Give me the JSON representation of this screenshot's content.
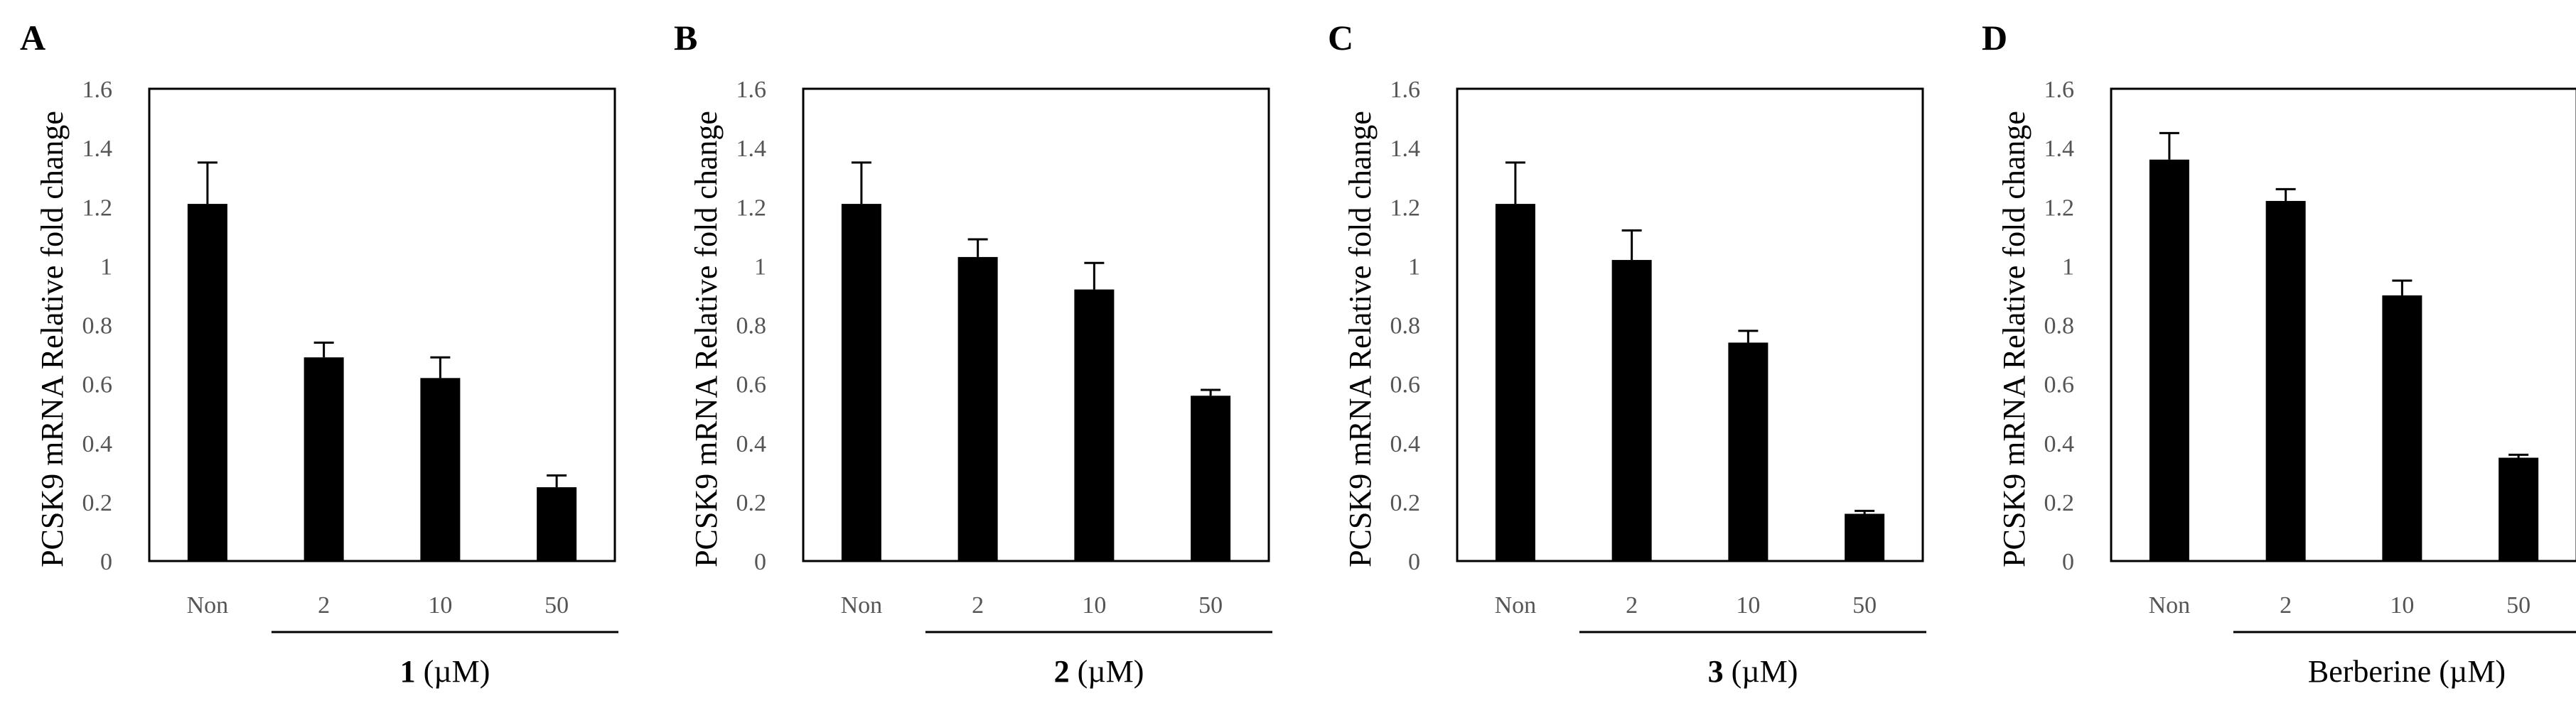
{
  "chart_data": [
    {
      "panel": "A",
      "type": "bar",
      "ylabel": "PCSK9 mRNA Relative fold change",
      "ylim": [
        0,
        1.6
      ],
      "yticks": [
        "0",
        "0.2",
        "0.4",
        "0.6",
        "0.8",
        "1",
        "1.2",
        "1.4",
        "1.6"
      ],
      "categories": [
        "Non",
        "2",
        "10",
        "50"
      ],
      "values": [
        1.21,
        0.69,
        0.62,
        0.25
      ],
      "errors": [
        0.14,
        0.05,
        0.07,
        0.04
      ],
      "xlabel_bold": "1",
      "xlabel_rest": " (µM)",
      "color": "#000000"
    },
    {
      "panel": "B",
      "type": "bar",
      "ylabel": "PCSK9 mRNA Relative fold change",
      "ylim": [
        0,
        1.6
      ],
      "yticks": [
        "0",
        "0.2",
        "0.4",
        "0.6",
        "0.8",
        "1",
        "1.2",
        "1.4",
        "1.6"
      ],
      "categories": [
        "Non",
        "2",
        "10",
        "50"
      ],
      "values": [
        1.21,
        1.03,
        0.92,
        0.56
      ],
      "errors": [
        0.14,
        0.06,
        0.09,
        0.02
      ],
      "xlabel_bold": "2",
      "xlabel_rest": " (µM)",
      "color": "#000000"
    },
    {
      "panel": "C",
      "type": "bar",
      "ylabel": "PCSK9 mRNA Relative fold change",
      "ylim": [
        0,
        1.6
      ],
      "yticks": [
        "0",
        "0.2",
        "0.4",
        "0.6",
        "0.8",
        "1",
        "1.2",
        "1.4",
        "1.6"
      ],
      "categories": [
        "Non",
        "2",
        "10",
        "50"
      ],
      "values": [
        1.21,
        1.02,
        0.74,
        0.16
      ],
      "errors": [
        0.14,
        0.1,
        0.04,
        0.01
      ],
      "xlabel_bold": "3",
      "xlabel_rest": " (µM)",
      "color": "#000000"
    },
    {
      "panel": "D",
      "type": "bar",
      "ylabel": "PCSK9 mRNA Relative fold change",
      "ylim": [
        0,
        1.6
      ],
      "yticks": [
        "0",
        "0.2",
        "0.4",
        "0.6",
        "0.8",
        "1",
        "1.2",
        "1.4",
        "1.6"
      ],
      "categories": [
        "Non",
        "2",
        "10",
        "50"
      ],
      "values": [
        1.36,
        1.22,
        0.9,
        0.35
      ],
      "errors": [
        0.09,
        0.04,
        0.05,
        0.01
      ],
      "xlabel_bold": "",
      "xlabel_rest": "Berberine (µM)",
      "color": "#000000"
    }
  ]
}
